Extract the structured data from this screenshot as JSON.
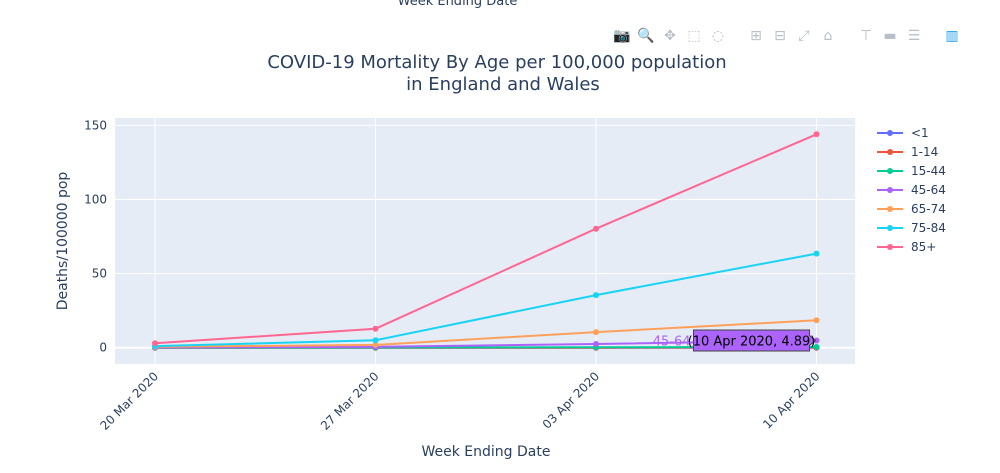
{
  "clipped_top_label": "Week Ending Date",
  "modebar": {
    "icons": [
      {
        "name": "camera-icon",
        "glyph": "📷",
        "label": "Download plot as png"
      },
      {
        "name": "zoom-icon",
        "glyph": "🔍",
        "label": "Zoom",
        "active": true
      },
      {
        "name": "pan-icon",
        "glyph": "✥",
        "label": "Pan"
      },
      {
        "name": "box-select-icon",
        "glyph": "⬚",
        "label": "Box Select"
      },
      {
        "name": "lasso-select-icon",
        "glyph": "◌",
        "label": "Lasso Select"
      },
      {
        "name": "zoom-in-icon",
        "glyph": "⊞",
        "label": "Zoom in"
      },
      {
        "name": "zoom-out-icon",
        "glyph": "⊟",
        "label": "Zoom out"
      },
      {
        "name": "autoscale-icon",
        "glyph": "⤢",
        "label": "Autoscale"
      },
      {
        "name": "reset-axes-icon",
        "glyph": "⌂",
        "label": "Reset axes"
      },
      {
        "name": "spike-lines-icon",
        "glyph": "⊤",
        "label": "Toggle Spike Lines"
      },
      {
        "name": "hover-closest-icon",
        "glyph": "▬",
        "label": "Show closest data on hover"
      },
      {
        "name": "hover-compare-icon",
        "glyph": "☰",
        "label": "Compare data on hover"
      },
      {
        "name": "plotly-logo-icon",
        "glyph": "▥",
        "label": "Produced with Plotly"
      }
    ]
  },
  "chart_data": {
    "type": "line",
    "title": [
      "COVID-19 Mortality By Age per 100,000 population",
      "in England and Wales"
    ],
    "xlabel": "Week Ending Date",
    "ylabel": "Deaths/100000 pop",
    "categories": [
      "20 Mar 2020",
      "27 Mar 2020",
      "03 Apr 2020",
      "10 Apr 2020"
    ],
    "ylim": [
      -11,
      155
    ],
    "yticks": [
      0,
      50,
      100,
      150
    ],
    "grid": true,
    "legend_position": "right",
    "series": [
      {
        "name": "<1",
        "color": "#636efa",
        "values": [
          0,
          0,
          0,
          0
        ]
      },
      {
        "name": "1-14",
        "color": "#ef553b",
        "values": [
          0,
          0,
          0,
          0.05
        ]
      },
      {
        "name": "15-44",
        "color": "#00cc96",
        "values": [
          0.05,
          0.1,
          0.3,
          0.5
        ]
      },
      {
        "name": "45-64",
        "color": "#ab63fa",
        "values": [
          0.2,
          0.55,
          2.5,
          4.89
        ]
      },
      {
        "name": "65-74",
        "color": "#ffa15a",
        "values": [
          0.6,
          1.9,
          10.5,
          18.5
        ]
      },
      {
        "name": "75-84",
        "color": "#19d3f3",
        "values": [
          1.1,
          5.0,
          35.5,
          63.5
        ]
      },
      {
        "name": "85+",
        "color": "#ff6692",
        "values": [
          3.0,
          12.8,
          80.3,
          144.0
        ]
      }
    ],
    "hover": {
      "series_name": "45-64",
      "text": "(10 Apr 2020, 4.89)",
      "category_index": 3
    }
  }
}
